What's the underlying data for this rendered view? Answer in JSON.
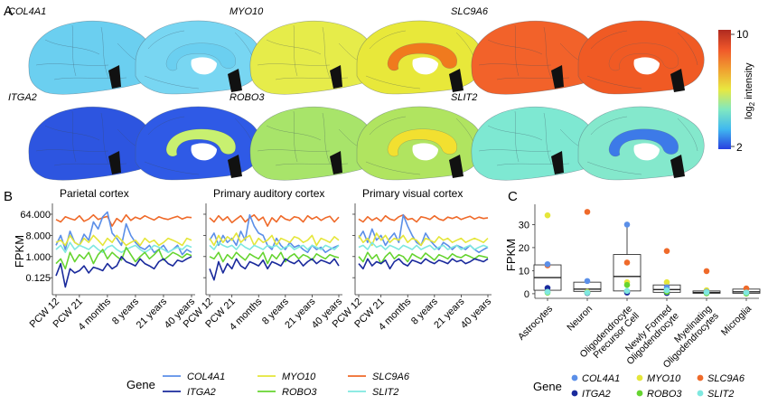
{
  "panel_labels": {
    "a": "A",
    "b": "B",
    "c": "C"
  },
  "colors": {
    "COL4A1": "#5b8fe8",
    "ITGA2": "#1a2a9c",
    "MYO10": "#e5e63a",
    "ROBO3": "#66d430",
    "SLC9A6": "#ef6a2a",
    "SLIT2": "#7fe8e0"
  },
  "panel_a": {
    "brains": [
      {
        "gene": "COL4A1",
        "lateral_color": "#6bcff0",
        "medial_color": "#78d6f2",
        "accent_color": "#6bcff0"
      },
      {
        "gene": "MYO10",
        "lateral_color": "#e6ec4a",
        "medial_color": "#e8e83a",
        "accent_color": "#f07a1e"
      },
      {
        "gene": "SLC9A6",
        "lateral_color": "#f2622a",
        "medial_color": "#f05a24",
        "accent_color": "#f05a24"
      },
      {
        "gene": "ITGA2",
        "lateral_color": "#2d55e0",
        "medial_color": "#2f5ae6",
        "accent_color": "#c8f070"
      },
      {
        "gene": "ROBO3",
        "lateral_color": "#a8e46a",
        "medial_color": "#b0e460",
        "accent_color": "#f2e030"
      },
      {
        "gene": "SLIT2",
        "lateral_color": "#7ee8d2",
        "medial_color": "#84e8cc",
        "accent_color": "#3d7ae8"
      }
    ],
    "colorbar": {
      "label": "log",
      "label_sub": "2",
      "label_rest": " intensity",
      "max_label": "10",
      "min_label": "2",
      "stops": [
        "#b02a20",
        "#f0582a",
        "#f0a030",
        "#e8e840",
        "#80e8c0",
        "#40b8f0",
        "#2840e0"
      ]
    }
  },
  "chart_data": [
    {
      "type": "line",
      "ylabel": "FPKM",
      "yscale": "log2",
      "yticks": [
        "64.000",
        "8.000",
        "1.000",
        "0.125"
      ],
      "ytick_values": [
        64,
        8,
        1,
        0.125
      ],
      "ylim": [
        0.04,
        130
      ],
      "xticks": [
        "PCW 12",
        "PCW 21",
        "4 months",
        "8 years",
        "21 years",
        "40 years"
      ],
      "xtick_positions": [
        0,
        5,
        11,
        17,
        23,
        29
      ],
      "xlim": [
        0,
        29
      ],
      "panels": [
        {
          "title": "Parietal cortex",
          "series": [
            {
              "name": "SLC9A6",
              "values": [
                38,
                30,
                50,
                42,
                36,
                55,
                32,
                40,
                60,
                38,
                45,
                52,
                20,
                42,
                30,
                60,
                35,
                48,
                40,
                55,
                44,
                36,
                50,
                42,
                38,
                45,
                52,
                40,
                48,
                46
              ]
            },
            {
              "name": "COL4A1",
              "values": [
                3,
                8,
                2,
                12,
                4,
                3,
                9,
                5,
                30,
                15,
                50,
                80,
                10,
                6,
                3,
                25,
                8,
                4,
                2.5,
                2,
                3,
                1.5,
                2,
                3,
                1.5,
                2,
                3,
                1.2,
                2,
                1.5
              ]
            },
            {
              "name": "MYO10",
              "values": [
                4,
                5,
                3,
                8,
                4,
                3,
                6,
                4,
                8,
                5,
                3,
                6,
                4,
                8,
                5,
                3,
                4,
                5,
                3,
                6,
                4,
                5,
                3,
                4,
                6,
                5,
                4,
                3,
                6,
                5
              ]
            },
            {
              "name": "SLIT2",
              "values": [
                2,
                3,
                1.5,
                4,
                2,
                3,
                2.5,
                2,
                3,
                2,
                1.5,
                2.5,
                3,
                2,
                1.5,
                2,
                2.5,
                3,
                2,
                1.5,
                2,
                3,
                2.5,
                2,
                1.5,
                2,
                2.5,
                2,
                3,
                2.5
              ]
            },
            {
              "name": "ROBO3",
              "values": [
                0.5,
                0.8,
                0.3,
                1.5,
                0.6,
                1.2,
                0.8,
                1.5,
                0.5,
                1.2,
                2,
                0.8,
                1.5,
                1,
                0.7,
                2.5,
                1.2,
                0.6,
                1,
                1.5,
                0.8,
                1.2,
                2,
                0.7,
                1,
                1.5,
                1.2,
                0.9,
                1.3,
                1.1
              ]
            },
            {
              "name": "ITGA2",
              "values": [
                0.15,
                0.5,
                0.05,
                0.3,
                0.2,
                0.25,
                0.4,
                0.2,
                0.35,
                0.3,
                0.25,
                0.5,
                0.3,
                0.4,
                1,
                0.6,
                0.5,
                0.4,
                0.8,
                0.5,
                0.4,
                0.3,
                0.6,
                0.8,
                0.5,
                0.4,
                0.7,
                0.6,
                0.8,
                1
              ]
            }
          ]
        },
        {
          "title": "Primary auditory cortex",
          "series": [
            {
              "name": "SLC9A6",
              "values": [
                45,
                30,
                55,
                35,
                50,
                28,
                40,
                55,
                30,
                45,
                60,
                35,
                48,
                20,
                45,
                30,
                55,
                40,
                35,
                50,
                45,
                30,
                55,
                40,
                50,
                35,
                45,
                52,
                30,
                48
              ]
            },
            {
              "name": "COL4A1",
              "values": [
                5,
                10,
                3,
                8,
                4,
                6,
                3,
                12,
                5,
                60,
                20,
                10,
                8,
                3,
                2,
                6,
                3,
                2,
                4,
                2.5,
                3,
                2,
                1.5,
                3,
                2,
                2.5,
                1.5,
                2,
                2.5,
                3
              ]
            },
            {
              "name": "MYO10",
              "values": [
                6,
                3,
                8,
                4,
                7,
                5,
                10,
                4,
                6,
                8,
                3,
                6,
                4,
                5,
                8,
                3,
                6,
                5,
                4,
                7,
                6,
                4,
                5,
                8,
                3,
                6,
                5,
                4,
                7,
                5
              ]
            },
            {
              "name": "SLIT2",
              "values": [
                3,
                2,
                4,
                3,
                2.5,
                3,
                2,
                3.5,
                2.5,
                2,
                3,
                2.5,
                2,
                3,
                2.5,
                3,
                2,
                2.5,
                3,
                2,
                2.5,
                3,
                2,
                3,
                2.5,
                2,
                3,
                2.5,
                2,
                3
              ]
            },
            {
              "name": "ROBO3",
              "values": [
                1,
                0.8,
                1.5,
                0.6,
                1.2,
                0.8,
                1.5,
                1,
                0.7,
                1.3,
                1,
                0.8,
                1.5,
                0.5,
                1.2,
                0.8,
                1.5,
                0.6,
                1,
                1.3,
                0.8,
                1.2,
                1,
                0.7,
                1.3,
                1,
                0.8,
                1.2,
                1,
                0.9
              ]
            },
            {
              "name": "ITGA2",
              "values": [
                0.3,
                0.1,
                0.6,
                0.2,
                0.5,
                0.3,
                0.8,
                0.4,
                0.3,
                0.6,
                0.5,
                0.4,
                0.7,
                0.3,
                0.6,
                0.5,
                0.4,
                0.8,
                0.6,
                0.5,
                0.7,
                0.4,
                0.6,
                0.8,
                0.5,
                0.7,
                0.6,
                0.5,
                0.8,
                0.4
              ]
            }
          ]
        },
        {
          "title": "Primary visual cortex",
          "series": [
            {
              "name": "SLC9A6",
              "values": [
                40,
                30,
                50,
                35,
                45,
                32,
                55,
                40,
                35,
                50,
                60,
                38,
                42,
                30,
                50,
                45,
                38,
                55,
                40,
                35,
                48,
                42,
                50,
                38,
                45,
                52,
                40,
                48,
                42,
                45
              ]
            },
            {
              "name": "COL4A1",
              "values": [
                6,
                12,
                4,
                15,
                5,
                8,
                3,
                6,
                10,
                4,
                60,
                20,
                8,
                4,
                3,
                10,
                5,
                3,
                2,
                4,
                3,
                2,
                3,
                2.5,
                2,
                3,
                2,
                1.5,
                2,
                2.5
              ]
            },
            {
              "name": "MYO10",
              "values": [
                8,
                4,
                6,
                3,
                10,
                5,
                8,
                4,
                6,
                5,
                8,
                4,
                6,
                5,
                3,
                6,
                5,
                4,
                7,
                5,
                6,
                4,
                5,
                6,
                4,
                5,
                6,
                5,
                4,
                6
              ]
            },
            {
              "name": "SLIT2",
              "values": [
                2.5,
                3,
                2,
                4,
                2.5,
                3,
                2,
                3,
                2.5,
                2,
                3,
                2.5,
                2,
                3,
                2,
                2.5,
                3,
                2,
                2.5,
                3,
                2,
                2.5,
                3,
                2,
                2.5,
                3,
                2,
                2.5,
                3,
                2.5
              ]
            },
            {
              "name": "ROBO3",
              "values": [
                1,
                0.6,
                1.5,
                0.8,
                1.2,
                0.5,
                1,
                1.5,
                0.8,
                1.2,
                1,
                0.6,
                1.3,
                1,
                0.8,
                1.4,
                1,
                0.7,
                1.2,
                1,
                0.8,
                1.3,
                1,
                0.9,
                1.2,
                1,
                0.8,
                1.1,
                1,
                0.9
              ]
            },
            {
              "name": "ITGA2",
              "values": [
                0.5,
                0.3,
                0.8,
                0.4,
                0.6,
                0.5,
                0.7,
                0.3,
                0.6,
                0.8,
                0.5,
                0.4,
                0.7,
                0.6,
                0.5,
                0.8,
                0.6,
                0.5,
                0.7,
                0.6,
                0.5,
                0.8,
                0.6,
                0.7,
                0.5,
                0.6,
                0.8,
                0.7,
                0.6,
                0.8
              ]
            }
          ]
        }
      ]
    },
    {
      "type": "box",
      "ylabel": "FPKM",
      "ylim": [
        -2,
        38
      ],
      "yticks": [
        0,
        10,
        20,
        30
      ],
      "categories": [
        "Astrocytes",
        "Neuron",
        "Oligodendrocyte Precursor Cell",
        "Newly Formed Oligodendrocyte",
        "Myelinating Oligodendrocytes",
        "Microglia"
      ],
      "category_labels": [
        [
          "Astrocytes"
        ],
        [
          "Neuron"
        ],
        [
          "Oligodendrocyte",
          "Precursor Cell"
        ],
        [
          "Newly Formed",
          "Oligodendrocyte"
        ],
        [
          "Myelinating",
          "Oligodendrocytes"
        ],
        [
          "Microglia"
        ]
      ],
      "boxes": [
        {
          "q1": 1.5,
          "median": 7,
          "q3": 12.5,
          "whisker_low": 0.3,
          "whisker_high": 12.5
        },
        {
          "q1": 1,
          "median": 2,
          "q3": 5,
          "whisker_low": 0.3,
          "whisker_high": 5
        },
        {
          "q1": 1.2,
          "median": 7.5,
          "q3": 17,
          "whisker_low": 0.3,
          "whisker_high": 30
        },
        {
          "q1": 0.6,
          "median": 1.8,
          "q3": 3.8,
          "whisker_low": 0.2,
          "whisker_high": 3.8
        },
        {
          "q1": 0.2,
          "median": 0.5,
          "q3": 1.2,
          "whisker_low": 0.1,
          "whisker_high": 1.2
        },
        {
          "q1": 0.2,
          "median": 0.8,
          "q3": 2,
          "whisker_low": 0.1,
          "whisker_high": 2
        }
      ],
      "points": [
        {
          "gene": "MYO10",
          "values": [
            34,
            0.8,
            5,
            5,
            1.5,
            0.6
          ]
        },
        {
          "gene": "SLC9A6",
          "values": [
            12.3,
            35.5,
            13.5,
            18.5,
            9.8,
            2.3
          ]
        },
        {
          "gene": "COL4A1",
          "values": [
            12.8,
            5.5,
            30,
            2.8,
            0.8,
            0.5
          ]
        },
        {
          "gene": "ITGA2",
          "values": [
            2.5,
            0.3,
            0.5,
            0.3,
            0.3,
            0.3
          ]
        },
        {
          "gene": "ROBO3",
          "values": [
            0.5,
            0.5,
            3.8,
            0.8,
            0.2,
            0.1
          ]
        },
        {
          "gene": "SLIT2",
          "values": [
            0.8,
            0.5,
            1.2,
            1.5,
            0.6,
            0.5
          ]
        }
      ]
    }
  ],
  "legend_b": {
    "title": "Gene",
    "items": [
      {
        "gene": "COL4A1"
      },
      {
        "gene": "MYO10"
      },
      {
        "gene": "SLC9A6"
      },
      {
        "gene": "ITGA2"
      },
      {
        "gene": "ROBO3"
      },
      {
        "gene": "SLIT2"
      }
    ]
  },
  "legend_c": {
    "title": "Gene",
    "items": [
      {
        "gene": "COL4A1"
      },
      {
        "gene": "MYO10"
      },
      {
        "gene": "SLC9A6"
      },
      {
        "gene": "ITGA2"
      },
      {
        "gene": "ROBO3"
      },
      {
        "gene": "SLIT2"
      }
    ]
  }
}
